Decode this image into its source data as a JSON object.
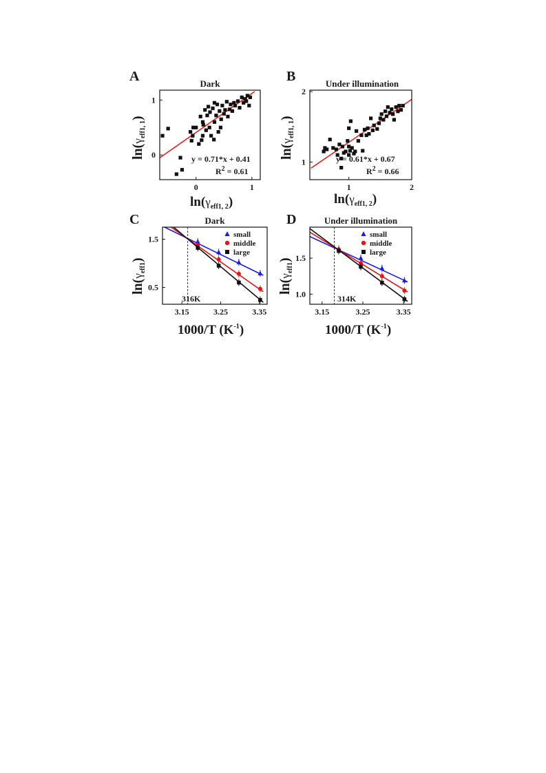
{
  "panels": {
    "A": {
      "letter": "A",
      "title": "Dark",
      "ylabel_main": "ln(",
      "ylabel_sub": "γ",
      "ylabel_index": "eff1, 1",
      "ylabel_close": ")",
      "xlabel_main": "ln(",
      "xlabel_sub": "γ",
      "xlabel_index": "eff1, 2",
      "xlabel_close": ")",
      "equation": "y = 0.71*x + 0.41",
      "r2_label": "R",
      "r2_sup": "2",
      "r2_value": " = 0.61"
    },
    "B": {
      "letter": "B",
      "title": "Under illumination",
      "ylabel_main": "ln(",
      "ylabel_sub": "γ",
      "ylabel_index": "eff1, 1",
      "ylabel_close": ")",
      "xlabel_main": "ln(",
      "xlabel_sub": "γ",
      "xlabel_index": "eff1, 2",
      "xlabel_close": ")",
      "equation": "y = 0.61*x + 0.67",
      "r2_label": "R",
      "r2_sup": "2",
      "r2_value": " = 0.66"
    },
    "C": {
      "letter": "C",
      "title": "Dark",
      "ylabel_main": "ln(",
      "ylabel_sub": "γ",
      "ylabel_index": "eff1",
      "ylabel_close": ")",
      "xlabel_main": "1000/T (K",
      "xlabel_sup": "-1",
      "xlabel_close": ")",
      "crossing_label": "316K",
      "crossing_color": "#333333"
    },
    "D": {
      "letter": "D",
      "title": "Under illumination",
      "ylabel_main": "ln(",
      "ylabel_sub": "γ",
      "ylabel_index": "eff1",
      "ylabel_close": ")",
      "xlabel_main": "1000/T (K",
      "xlabel_sup": "-1",
      "xlabel_close": ")",
      "crossing_label": "314K",
      "crossing_color": "#ff2222"
    }
  },
  "colors": {
    "fit_red": "#ee2222",
    "small": "#1a1aee",
    "middle": "#ee1111",
    "large": "#111111",
    "marker": "#111111"
  },
  "chart_data": [
    {
      "id": "A",
      "type": "scatter",
      "title": "Dark",
      "xlim": [
        -0.65,
        1.15
      ],
      "ylim": [
        -0.45,
        1.18
      ],
      "xticks": [
        0,
        1
      ],
      "yticks": [
        0,
        1
      ],
      "fit": {
        "slope": 0.71,
        "intercept": 0.41,
        "x_range": [
          -0.7,
          1.05
        ]
      },
      "points": [
        [
          -0.6,
          0.35
        ],
        [
          -0.5,
          0.48
        ],
        [
          -0.35,
          -0.35
        ],
        [
          -0.28,
          -0.05
        ],
        [
          -0.25,
          -0.27
        ],
        [
          -0.1,
          0.42
        ],
        [
          -0.08,
          0.26
        ],
        [
          -0.06,
          0.35
        ],
        [
          -0.05,
          0.5
        ],
        [
          0.0,
          0.5
        ],
        [
          0.05,
          0.2
        ],
        [
          0.08,
          0.7
        ],
        [
          0.1,
          0.27
        ],
        [
          0.12,
          0.35
        ],
        [
          0.13,
          0.55
        ],
        [
          0.16,
          0.82
        ],
        [
          0.18,
          0.45
        ],
        [
          0.2,
          0.72
        ],
        [
          0.22,
          0.88
        ],
        [
          0.24,
          0.5
        ],
        [
          0.25,
          0.78
        ],
        [
          0.27,
          0.35
        ],
        [
          0.3,
          0.85
        ],
        [
          0.32,
          0.28
        ],
        [
          0.33,
          0.6
        ],
        [
          0.36,
          0.72
        ],
        [
          0.38,
          0.92
        ],
        [
          0.4,
          0.42
        ],
        [
          0.42,
          0.8
        ],
        [
          0.44,
          0.5
        ],
        [
          0.45,
          0.65
        ],
        [
          0.47,
          0.9
        ],
        [
          0.5,
          0.75
        ],
        [
          0.52,
          0.82
        ],
        [
          0.55,
          0.97
        ],
        [
          0.57,
          0.7
        ],
        [
          0.6,
          0.83
        ],
        [
          0.62,
          0.92
        ],
        [
          0.65,
          0.8
        ],
        [
          0.68,
          0.95
        ],
        [
          0.7,
          0.9
        ],
        [
          0.75,
          0.98
        ],
        [
          0.78,
          0.86
        ],
        [
          0.82,
          1.05
        ],
        [
          0.85,
          0.95
        ],
        [
          0.88,
          1.02
        ],
        [
          0.9,
          0.98
        ],
        [
          0.92,
          1.08
        ],
        [
          0.95,
          0.9
        ],
        [
          0.97,
          1.05
        ],
        [
          0.33,
          0.95
        ],
        [
          0.12,
          0.6
        ]
      ]
    },
    {
      "id": "B",
      "type": "scatter",
      "title": "Under illumination",
      "xlim": [
        0.38,
        2.0
      ],
      "ylim": [
        0.75,
        2.02
      ],
      "xticks": [
        1,
        2
      ],
      "yticks": [
        1,
        2
      ],
      "fit": {
        "slope": 0.61,
        "intercept": 0.67,
        "x_range": [
          0.4,
          2.0
        ]
      },
      "points": [
        [
          0.6,
          1.15
        ],
        [
          0.62,
          1.2
        ],
        [
          0.65,
          1.18
        ],
        [
          0.7,
          1.32
        ],
        [
          0.75,
          1.2
        ],
        [
          0.8,
          1.18
        ],
        [
          0.82,
          1.1
        ],
        [
          0.85,
          1.25
        ],
        [
          0.88,
          1.05
        ],
        [
          0.9,
          1.22
        ],
        [
          0.92,
          1.13
        ],
        [
          0.95,
          1.15
        ],
        [
          0.98,
          1.3
        ],
        [
          1.0,
          1.1
        ],
        [
          1.0,
          1.48
        ],
        [
          1.02,
          1.16
        ],
        [
          1.03,
          1.58
        ],
        [
          1.05,
          1.2
        ],
        [
          1.08,
          1.12
        ],
        [
          1.1,
          1.15
        ],
        [
          1.12,
          1.44
        ],
        [
          1.15,
          1.3
        ],
        [
          1.2,
          1.38
        ],
        [
          1.22,
          1.16
        ],
        [
          1.25,
          1.46
        ],
        [
          1.28,
          1.38
        ],
        [
          1.3,
          1.48
        ],
        [
          1.32,
          1.4
        ],
        [
          1.35,
          1.62
        ],
        [
          1.38,
          1.45
        ],
        [
          1.4,
          1.52
        ],
        [
          1.45,
          1.47
        ],
        [
          1.48,
          1.55
        ],
        [
          1.5,
          1.62
        ],
        [
          1.52,
          1.68
        ],
        [
          1.55,
          1.6
        ],
        [
          1.58,
          1.72
        ],
        [
          1.6,
          1.65
        ],
        [
          1.62,
          1.78
        ],
        [
          1.65,
          1.7
        ],
        [
          1.68,
          1.75
        ],
        [
          1.7,
          1.68
        ],
        [
          1.72,
          1.6
        ],
        [
          1.75,
          1.78
        ],
        [
          1.78,
          1.72
        ],
        [
          1.8,
          1.8
        ],
        [
          1.83,
          1.74
        ],
        [
          1.86,
          1.8
        ],
        [
          0.88,
          0.92
        ],
        [
          1.0,
          1.22
        ]
      ]
    },
    {
      "id": "C",
      "type": "line",
      "title": "Dark",
      "xlim": [
        3.1,
        3.37
      ],
      "ylim": [
        0.15,
        1.75
      ],
      "xticks": [
        3.15,
        3.25,
        3.35
      ],
      "yticks": [
        0.5,
        1.5
      ],
      "crossing_x": 3.165,
      "legend": [
        "small",
        "middle",
        "large"
      ],
      "series": [
        {
          "name": "small",
          "marker": "triangle",
          "x": [
            3.191,
            3.245,
            3.297,
            3.352
          ],
          "y": [
            1.45,
            1.23,
            1.02,
            0.79
          ],
          "fit": {
            "x": [
              3.09,
              3.36
            ],
            "y": [
              1.81,
              0.75
            ]
          }
        },
        {
          "name": "middle",
          "marker": "circle",
          "x": [
            3.191,
            3.245,
            3.297,
            3.352
          ],
          "y": [
            1.38,
            1.08,
            0.78,
            0.47
          ],
          "fit": {
            "x": [
              3.09,
              3.36
            ],
            "y": [
              1.93,
              0.41
            ]
          }
        },
        {
          "name": "large",
          "marker": "square",
          "x": [
            3.191,
            3.245,
            3.297,
            3.352
          ],
          "y": [
            1.32,
            0.95,
            0.6,
            0.24
          ],
          "fit": {
            "x": [
              3.09,
              3.36
            ],
            "y": [
              2.01,
              0.19
            ]
          }
        }
      ]
    },
    {
      "id": "D",
      "type": "line",
      "title": "Under illumination",
      "xlim": [
        3.12,
        3.37
      ],
      "ylim": [
        0.86,
        1.93
      ],
      "xticks": [
        3.15,
        3.25,
        3.35
      ],
      "yticks": [
        1.0,
        1.5
      ],
      "crossing_x": 3.18,
      "legend": [
        "small",
        "middle",
        "large"
      ],
      "series": [
        {
          "name": "small",
          "marker": "triangle",
          "x": [
            3.191,
            3.245,
            3.297,
            3.352
          ],
          "y": [
            1.63,
            1.5,
            1.36,
            1.19
          ],
          "fit": {
            "x": [
              3.12,
              3.36
            ],
            "y": [
              1.8,
              1.17
            ]
          }
        },
        {
          "name": "middle",
          "marker": "circle",
          "x": [
            3.191,
            3.245,
            3.297,
            3.352
          ],
          "y": [
            1.62,
            1.43,
            1.25,
            1.05
          ],
          "fit": {
            "x": [
              3.12,
              3.36
            ],
            "y": [
              1.86,
              1.03
            ]
          }
        },
        {
          "name": "large",
          "marker": "square",
          "x": [
            3.191,
            3.245,
            3.297,
            3.352
          ],
          "y": [
            1.6,
            1.38,
            1.16,
            0.93
          ],
          "fit": {
            "x": [
              3.12,
              3.36
            ],
            "y": [
              1.91,
              0.9
            ]
          }
        }
      ]
    }
  ]
}
